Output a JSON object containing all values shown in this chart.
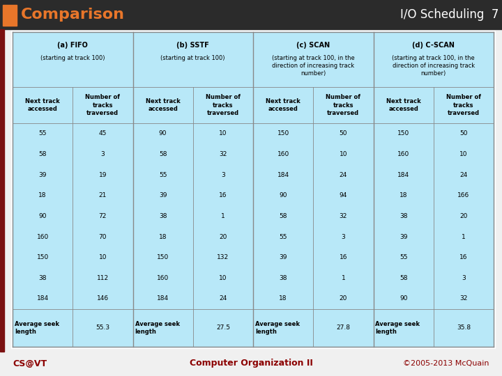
{
  "title_left": "Comparison",
  "title_right": "I/O Scheduling  7",
  "footer_left": "CS@VT",
  "footer_center": "Computer Organization II",
  "footer_right": "©2005-2013 McQuain",
  "bg_color": "#f0f0f0",
  "header_orange": "#e8762a",
  "header_dark_red": "#7b1010",
  "table_bg": "#b8e8f8",
  "title_color": "#ffffff",
  "footer_color": "#8b0000",
  "group_titles": [
    "(a) FIFO",
    "(b) SSTF",
    "(c) SCAN",
    "(d) C-SCAN"
  ],
  "group_subtitles": [
    "(starting at track 100)",
    "(starting at track 100)",
    "(starting at track 100, in the\ndirection of increasing track\nnumber)",
    "(starting at track 100, in the\ndirection of increasing track\nnumber)"
  ],
  "subheaders": [
    "Next track\naccessed",
    "Number of\ntracks\ntraversed"
  ],
  "data": [
    [
      55,
      45,
      90,
      10,
      150,
      50,
      150,
      50
    ],
    [
      58,
      3,
      58,
      32,
      160,
      10,
      160,
      10
    ],
    [
      39,
      19,
      55,
      3,
      184,
      24,
      184,
      24
    ],
    [
      18,
      21,
      39,
      16,
      90,
      94,
      18,
      166
    ],
    [
      90,
      72,
      38,
      1,
      58,
      32,
      38,
      20
    ],
    [
      160,
      70,
      18,
      20,
      55,
      3,
      39,
      1
    ],
    [
      150,
      10,
      150,
      132,
      39,
      16,
      55,
      16
    ],
    [
      38,
      112,
      160,
      10,
      38,
      1,
      58,
      3
    ],
    [
      184,
      146,
      184,
      24,
      18,
      20,
      90,
      32
    ]
  ],
  "averages": [
    55.3,
    27.5,
    27.8,
    35.8
  ]
}
